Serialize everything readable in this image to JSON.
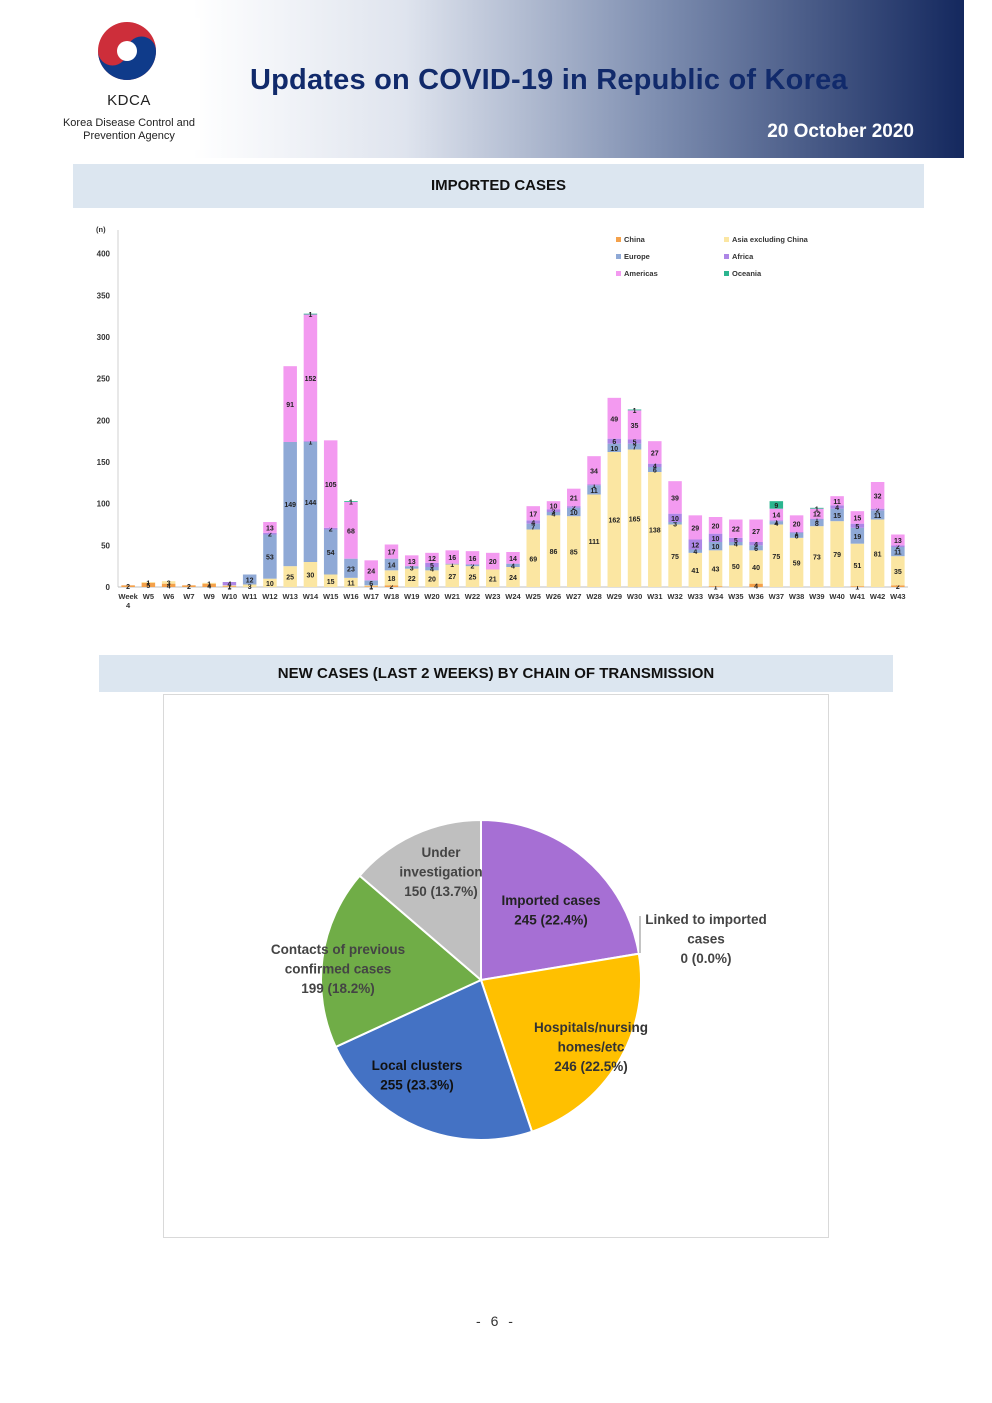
{
  "header": {
    "logo_name": "KDCA",
    "logo_subtitle_line1": "Korea Disease Control and",
    "logo_subtitle_line2": "Prevention Agency",
    "title": "Updates on COVID-19 in Republic of Korea",
    "date": "20 October 2020"
  },
  "sections": {
    "imported_title": "IMPORTED  CASES",
    "transmission_title": "NEW  CASES  (LAST  2  WEEKS)  BY  CHAIN  OF  TRANSMISSION"
  },
  "page_number": "- 6 -",
  "colors": {
    "China": "#f4a14b",
    "Asia excluding China": "#fbe6a2",
    "Europe": "#8fa9d6",
    "Africa": "#ad86e6",
    "Americas": "#f39af0",
    "Oceania": "#2bb58f",
    "header_navy": "#112a6b",
    "section_bg": "#dce6f0"
  },
  "chart_data": [
    {
      "type": "bar",
      "stacked": true,
      "title": "IMPORTED  CASES",
      "ylabel": "(n)",
      "ylim": [
        0,
        430
      ],
      "yticks": [
        0,
        50,
        100,
        150,
        200,
        250,
        300,
        350,
        400
      ],
      "legend_position": "top-right",
      "legend": [
        "China",
        "Asia excluding China",
        "Europe",
        "Africa",
        "Americas",
        "Oceania"
      ],
      "categories": [
        "Week 4",
        "W5",
        "W6",
        "W7",
        "W9",
        "W10",
        "W11",
        "W12",
        "W13",
        "W14",
        "W15",
        "W16",
        "W17",
        "W18",
        "W19",
        "W20",
        "W21",
        "W22",
        "W23",
        "W24",
        "W25",
        "W26",
        "W27",
        "W28",
        "W29",
        "W30",
        "W31",
        "W32",
        "W33",
        "W34",
        "W35",
        "W36",
        "W37",
        "W38",
        "W39",
        "W40",
        "W41",
        "W42",
        "W43"
      ],
      "series": [
        {
          "name": "China",
          "values": [
            2,
            5,
            4,
            2,
            4,
            1,
            0,
            0,
            0,
            0,
            0,
            0,
            1,
            2,
            0,
            0,
            0,
            0,
            0,
            0,
            0,
            0,
            0,
            0,
            0,
            0,
            0,
            0,
            0,
            1,
            0,
            4,
            0,
            0,
            0,
            0,
            1,
            0,
            2
          ]
        },
        {
          "name": "Asia excluding China",
          "values": [
            0,
            1,
            3,
            0,
            1,
            1,
            3,
            10,
            25,
            30,
            15,
            11,
            1,
            18,
            22,
            20,
            27,
            25,
            21,
            24,
            69,
            86,
            85,
            111,
            162,
            165,
            138,
            75,
            41,
            43,
            50,
            40,
            75,
            59,
            73,
            79,
            51,
            81,
            35
          ]
        },
        {
          "name": "Europe",
          "values": [
            0,
            0,
            0,
            0,
            0,
            0,
            12,
            53,
            149,
            144,
            54,
            23,
            6,
            14,
            3,
            4,
            1,
            2,
            0,
            4,
            7,
            4,
            10,
            11,
            10,
            7,
            6,
            3,
            4,
            10,
            4,
            6,
            4,
            6,
            8,
            15,
            19,
            11,
            11
          ]
        },
        {
          "name": "Africa",
          "values": [
            0,
            0,
            0,
            0,
            0,
            4,
            0,
            2,
            0,
            1,
            2,
            0,
            0,
            0,
            0,
            5,
            0,
            0,
            0,
            0,
            4,
            3,
            2,
            1,
            6,
            5,
            4,
            10,
            12,
            10,
            5,
            4,
            1,
            1,
            1,
            4,
            5,
            2,
            2
          ]
        },
        {
          "name": "Americas",
          "values": [
            0,
            0,
            0,
            0,
            0,
            0,
            0,
            13,
            91,
            152,
            105,
            68,
            24,
            17,
            13,
            12,
            16,
            16,
            20,
            14,
            17,
            10,
            21,
            34,
            49,
            35,
            27,
            39,
            29,
            20,
            22,
            27,
            14,
            20,
            12,
            11,
            15,
            32,
            13
          ]
        },
        {
          "name": "Oceania",
          "values": [
            0,
            0,
            0,
            0,
            0,
            0,
            0,
            0,
            0,
            1,
            0,
            1,
            0,
            0,
            0,
            0,
            0,
            0,
            0,
            0,
            0,
            0,
            0,
            0,
            0,
            1,
            0,
            0,
            0,
            0,
            0,
            0,
            9,
            0,
            1,
            0,
            0,
            0,
            0
          ]
        }
      ]
    },
    {
      "type": "pie",
      "title": "NEW  CASES  (LAST  2  WEEKS)  BY  CHAIN  OF  TRANSMISSION",
      "slices": [
        {
          "label": "Imported cases",
          "value": 245,
          "pct": "22.4%",
          "color": "#a66fd4"
        },
        {
          "label": "Linked to imported cases",
          "value": 0,
          "pct": "0.0%",
          "color": "#ed7d31"
        },
        {
          "label": "Hospitals/nursing homes/etc",
          "value": 246,
          "pct": "22.5%",
          "color": "#ffc000"
        },
        {
          "label": "Local clusters",
          "value": 255,
          "pct": "23.3%",
          "color": "#4472c4"
        },
        {
          "label": "Contacts of previous confirmed cases",
          "value": 199,
          "pct": "18.2%",
          "color": "#70ad47"
        },
        {
          "label": "Under investigation",
          "value": 150,
          "pct": "13.7%",
          "color": "#bfbfbf"
        }
      ]
    }
  ]
}
